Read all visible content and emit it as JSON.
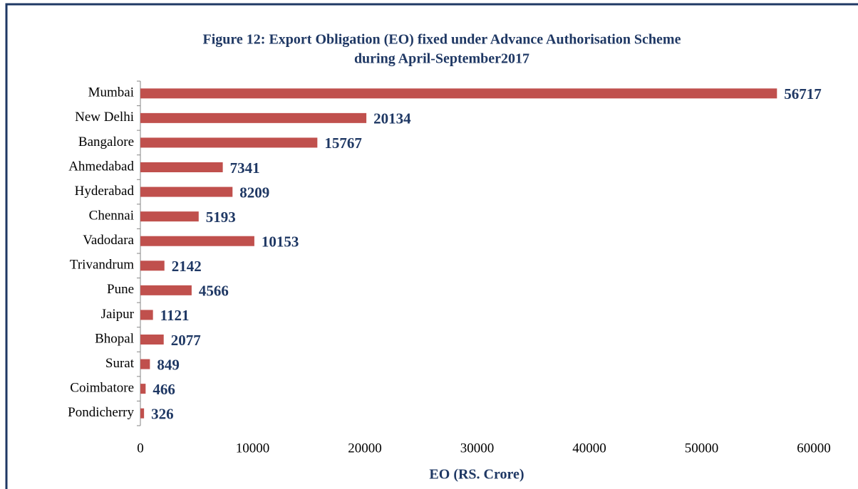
{
  "chart_data": {
    "type": "bar",
    "orientation": "horizontal",
    "title": [
      "Figure 12: Export Obligation (EO) fixed under Advance Authorisation Scheme",
      "during April-September2017"
    ],
    "xlabel": "EO (RS. Crore)",
    "categories": [
      "Mumbai",
      "New Delhi",
      "Bangalore",
      "Ahmedabad",
      "Hyderabad",
      "Chennai",
      "Vadodara",
      "Trivandrum",
      "Pune",
      "Jaipur",
      "Bhopal",
      "Surat",
      "Coimbatore",
      "Pondicherry"
    ],
    "values": [
      56717,
      20134,
      15767,
      7341,
      8209,
      5193,
      10153,
      2142,
      4566,
      1121,
      2077,
      849,
      466,
      326
    ],
    "color": "#c0504d",
    "xlim": [
      0,
      60000
    ],
    "xticks": [
      0,
      10000,
      20000,
      30000,
      40000,
      50000,
      60000
    ]
  }
}
